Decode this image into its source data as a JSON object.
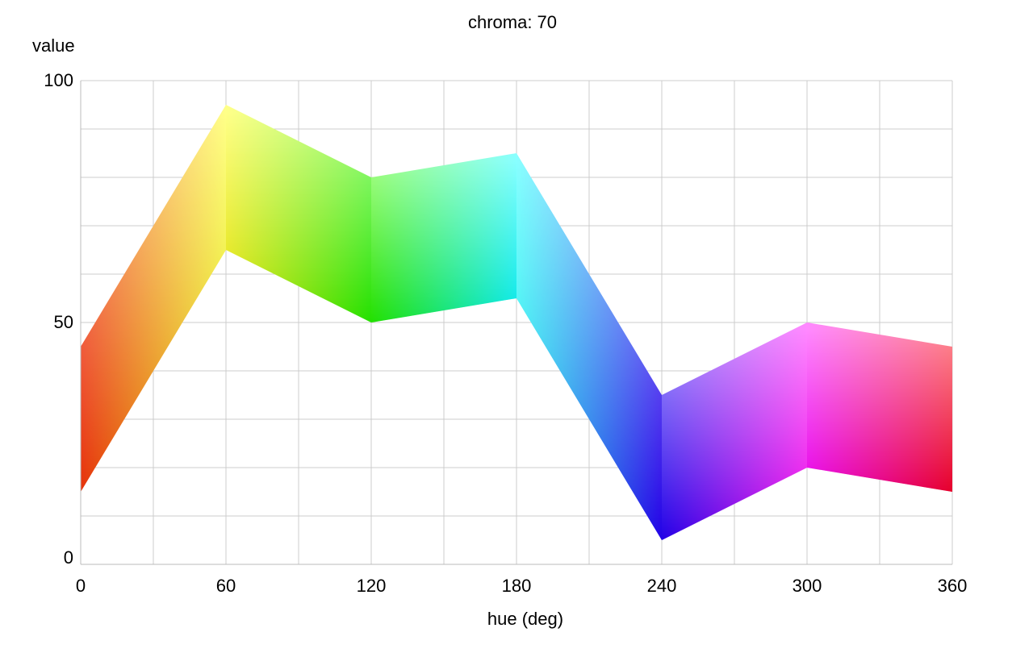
{
  "chart_data": {
    "type": "area",
    "title": "chroma: 70",
    "xlabel": "hue (deg)",
    "ylabel": "value",
    "xlim": [
      0,
      360
    ],
    "ylim": [
      0,
      100
    ],
    "x_ticks": [
      0,
      60,
      120,
      180,
      240,
      300,
      360
    ],
    "y_ticks": [
      0,
      50,
      100
    ],
    "grid": true,
    "x": [
      0,
      60,
      120,
      180,
      240,
      300,
      360
    ],
    "series": [
      {
        "values": [
          45,
          95,
          80,
          85,
          35,
          50,
          45
        ]
      },
      {
        "values": [
          15,
          65,
          50,
          55,
          5,
          20,
          15
        ]
      }
    ],
    "top_colors": [
      "#ff9a8c",
      "#ffff88",
      "#a6ff88",
      "#88ffff",
      "#a89aff",
      "#ff88ff",
      "#ff8c92"
    ],
    "bottom_colors": [
      "#e6320a",
      "#dede00",
      "#22e000",
      "#00e6e6",
      "#2200e6",
      "#e600e6",
      "#e6002a"
    ]
  }
}
